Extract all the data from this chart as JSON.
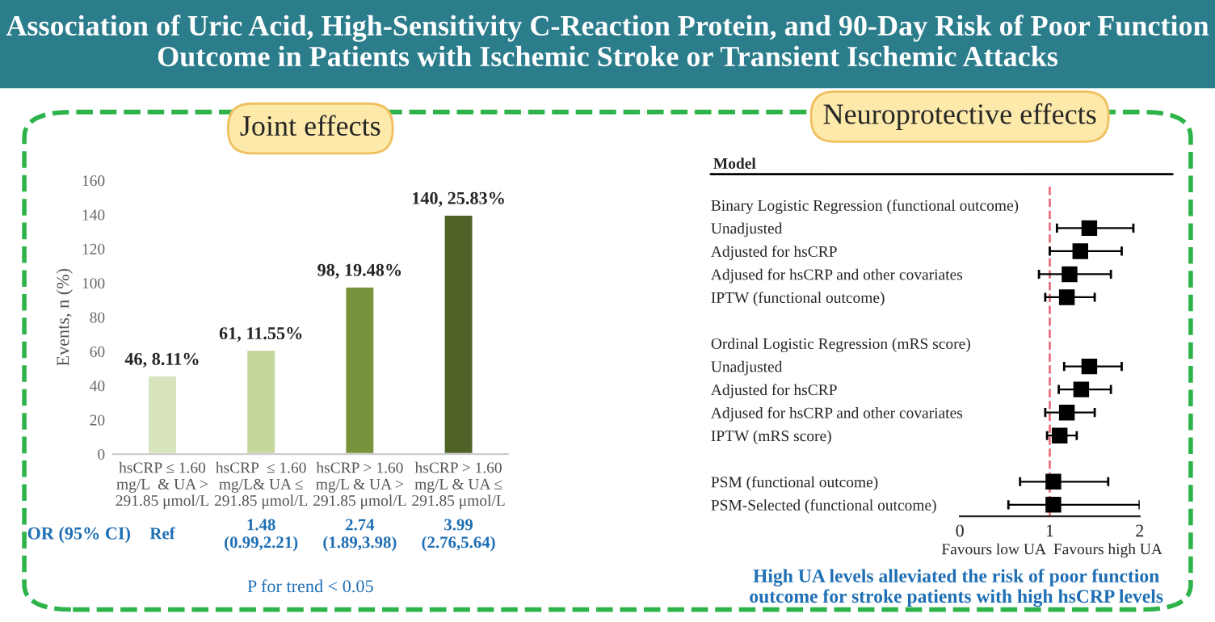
{
  "chart_data": [
    {
      "type": "bar",
      "title": "Joint effects",
      "ylabel": "Events, n (%)",
      "categories": [
        "hsCRP ≤ 1.60\nmg/L  & UA >\n291.85 μmol/L",
        "hsCRP  ≤ 1.60\nmg/L& UA ≤\n291.85 μmol/L",
        "hsCRP > 1.60\nmg/L & UA >\n291.85 μmol/L",
        "hsCRP > 1.60\nmg/L & UA ≤\n291.85 μmol/L"
      ],
      "values": [
        46,
        61,
        98,
        140
      ],
      "colors": [
        "#d7e4bd",
        "#c3d69b",
        "#77933c",
        "#4f6228"
      ],
      "value_labels": [
        "46, 8.11%",
        "61, 11.55%",
        "98, 19.48%",
        "140, 25.83%"
      ],
      "ylim": [
        0,
        160
      ],
      "yticks": [
        0,
        20,
        40,
        60,
        80,
        100,
        120,
        140,
        160
      ],
      "grid": false,
      "legend": false,
      "annotations": [
        "Association of Uric Acid, High-Sensitivity C-Reaction Protein, and 90-Day Risk of Poor Function Outcome in Patients with Ischemic Stroke or Transient Ischemic Attacks",
        "OR (95% CI)",
        "Ref",
        "1.48\n(0.99,2.21)",
        "2.74\n(1.89,3.98)",
        "3.99\n(2.76,5.64)",
        "P for trend < 0.05"
      ]
    },
    {
      "type": "scatter",
      "orientation": "horizontal",
      "title": "Neuroprotective effects",
      "categories": [
        "Binary Logistic Regression (functional outcome)",
        "Unadjusted",
        "Adjusted for hsCRP",
        "Adjused for hsCRP and other covariates",
        "IPTW (functional outcome)",
        null,
        "Ordinal Logistic Regression (mRS score)",
        "Unadjusted",
        "Adjusted for hsCRP",
        "Adjused for hsCRP and other covariates",
        "IPTW (mRS score)",
        null,
        "PSM (functional outcome)",
        "PSM-Selected (functional outcome)"
      ],
      "values": [
        null,
        1.44,
        1.34,
        1.22,
        1.19,
        null,
        null,
        1.44,
        1.35,
        1.19,
        1.11,
        null,
        1.04,
        1.04
      ],
      "errors": [
        null,
        [
          1.08,
          1.93
        ],
        [
          1.0,
          1.8
        ],
        [
          0.88,
          1.68
        ],
        [
          0.95,
          1.5
        ],
        null,
        null,
        [
          1.16,
          1.8
        ],
        [
          1.1,
          1.68
        ],
        [
          0.95,
          1.5
        ],
        [
          0.97,
          1.3
        ],
        null,
        [
          0.67,
          1.65
        ],
        [
          0.54,
          2.0
        ]
      ],
      "color": "#000000",
      "marker": "square",
      "xlim": [
        0,
        2
      ],
      "xticks": [
        0,
        1,
        2
      ],
      "ref_lines": [
        {
          "axis": "x",
          "value": 1,
          "color": "#e8707e",
          "line_style": "dashed"
        }
      ],
      "annotations": [
        "Model",
        "Favours low UA",
        "Favours high UA",
        "High UA levels alleviated the risk of poor function\noutcome for stroke patients with high hsCRP levels"
      ]
    }
  ]
}
